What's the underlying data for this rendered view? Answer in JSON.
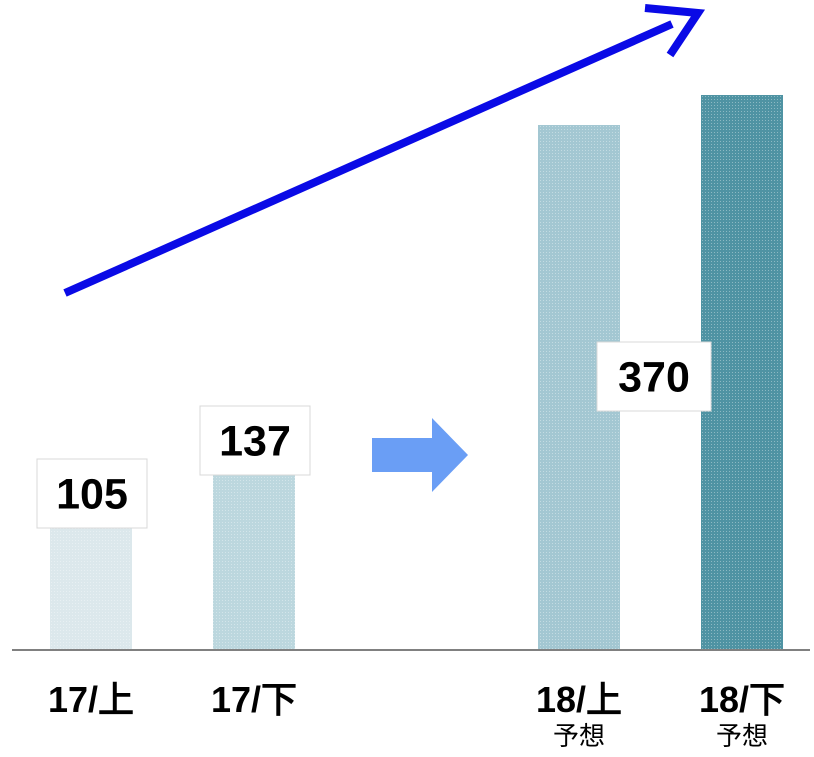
{
  "chart_data": {
    "type": "bar",
    "categories": [
      "17/上",
      "17/下",
      "18/上",
      "18/下"
    ],
    "sub_labels": [
      "",
      "",
      "予想",
      "予想"
    ],
    "values": [
      105,
      137,
      null,
      null
    ],
    "value_labels": [
      "105",
      "137",
      "",
      "370"
    ],
    "series": [
      {
        "values": [
          105,
          137,
          350,
          370
        ],
        "colors": [
          "#dce8ec",
          "#bcd7de",
          "#a3c7d2",
          "#4f93a3"
        ]
      }
    ],
    "ylim": [
      0,
      400
    ],
    "grid": false,
    "legend": "none",
    "title": "",
    "xlabel": "",
    "ylabel": "",
    "trend_arrow_color": "#0a0ae6",
    "block_arrow_color": "#6a9ef5",
    "baseline_color": "#808080"
  }
}
